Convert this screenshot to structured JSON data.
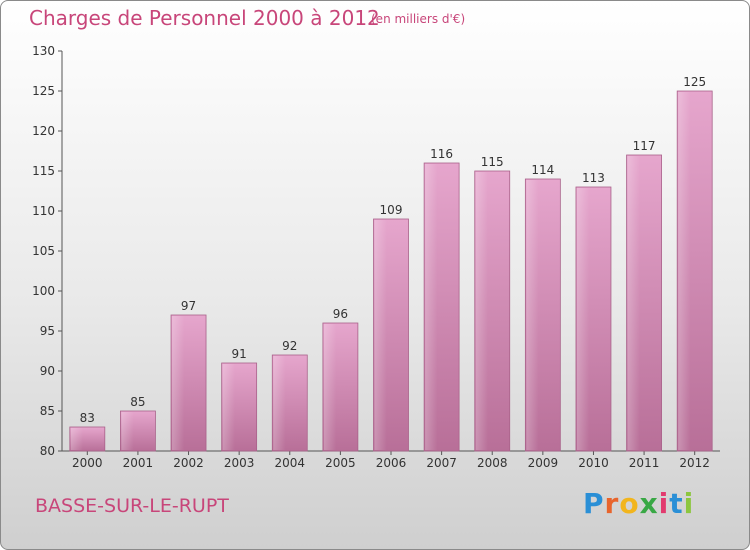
{
  "header": {
    "title": "Charges de Personnel 2000 à 2012",
    "subtitle": "(en milliers d'€)"
  },
  "footer": {
    "commune": "BASSE-SUR-LE-RUPT",
    "logo_letters": [
      "P",
      "r",
      "o",
      "x",
      "i",
      "t",
      "i"
    ],
    "logo_colors": [
      "#2a8fd6",
      "#e8642c",
      "#f2b51d",
      "#39a845",
      "#e23a6e",
      "#2a8fd6",
      "#8cc63f"
    ]
  },
  "chart_data": {
    "type": "bar",
    "title": "Charges de Personnel 2000 à 2012",
    "subtitle": "(en milliers d'€)",
    "categories": [
      "2000",
      "2001",
      "2002",
      "2003",
      "2004",
      "2005",
      "2006",
      "2007",
      "2008",
      "2009",
      "2010",
      "2011",
      "2012"
    ],
    "values": [
      83,
      85,
      97,
      91,
      92,
      96,
      109,
      116,
      115,
      114,
      113,
      117,
      125
    ],
    "ylim": [
      80,
      130
    ],
    "yticks": [
      80,
      85,
      90,
      95,
      100,
      105,
      110,
      115,
      120,
      125,
      130
    ],
    "grid": false,
    "bar_color": "#d98ab7"
  }
}
